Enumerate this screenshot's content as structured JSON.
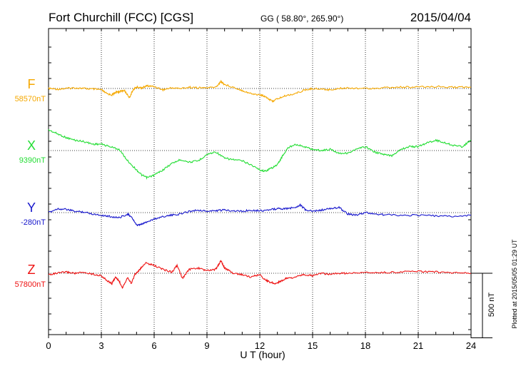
{
  "header": {
    "station": "Fort Churchill (FCC)  [CGS]",
    "coords": "GG ( 58.80°, 265.90°)",
    "date": "2015/04/04"
  },
  "plotted_note": "Plotted at 2015/05/05 01:29 UT",
  "scale_bar_label": "500 nT",
  "chart_data": {
    "type": "line",
    "xlabel": "U T (hour)",
    "xlim": [
      0,
      24
    ],
    "xticks": [
      0,
      3,
      6,
      9,
      12,
      15,
      18,
      21,
      24
    ],
    "grid": true,
    "scale_bar_nT": 500,
    "series": [
      {
        "name": "F",
        "baseline_label": "58570nT",
        "baseline": 58570,
        "color": "#f5a800",
        "x": [
          0,
          0.5,
          1,
          1.5,
          2,
          2.5,
          3,
          3.3,
          3.6,
          3.8,
          4,
          4.3,
          4.6,
          4.8,
          5,
          5.3,
          5.6,
          6,
          6.5,
          7,
          7.5,
          8,
          8.5,
          9,
          9.5,
          9.8,
          10,
          10.5,
          11,
          11.5,
          12,
          12.3,
          12.7,
          13,
          13.5,
          14,
          14.5,
          15,
          15.5,
          16,
          16.5,
          17,
          18,
          19,
          20,
          21,
          22,
          23,
          24
        ],
        "y": [
          58570,
          58565,
          58570,
          58575,
          58570,
          58565,
          58560,
          58530,
          58520,
          58540,
          58545,
          58555,
          58500,
          58560,
          58580,
          58575,
          58590,
          58585,
          58560,
          58575,
          58570,
          58580,
          58575,
          58575,
          58580,
          58625,
          58600,
          58580,
          58555,
          58530,
          58520,
          58510,
          58470,
          58490,
          58515,
          58530,
          58555,
          58570,
          58565,
          58560,
          58570,
          58575,
          58570,
          58575,
          58580,
          58580,
          58585,
          58580,
          58580
        ]
      },
      {
        "name": "X",
        "baseline_label": "9390nT",
        "baseline": 9390,
        "color": "#22dd33",
        "x": [
          0,
          0.5,
          1,
          1.5,
          2,
          2.5,
          3,
          3.5,
          4,
          4.5,
          5,
          5.3,
          5.6,
          6,
          6.5,
          7,
          7.5,
          8,
          8.5,
          9,
          9.5,
          10,
          10.5,
          11,
          11.5,
          12,
          12.3,
          12.6,
          13,
          13.3,
          13.6,
          14,
          14.5,
          15,
          15.5,
          16,
          16.5,
          17,
          17.5,
          18,
          18.5,
          19,
          19.5,
          20,
          20.5,
          21,
          21.5,
          22,
          22.5,
          23,
          23.5,
          24
        ],
        "y": [
          9550,
          9520,
          9490,
          9470,
          9460,
          9440,
          9440,
          9420,
          9400,
          9310,
          9240,
          9200,
          9180,
          9200,
          9240,
          9290,
          9320,
          9300,
          9310,
          9360,
          9380,
          9330,
          9320,
          9310,
          9280,
          9240,
          9230,
          9250,
          9280,
          9350,
          9410,
          9440,
          9420,
          9400,
          9390,
          9400,
          9370,
          9370,
          9400,
          9420,
          9380,
          9360,
          9350,
          9400,
          9420,
          9420,
          9450,
          9470,
          9450,
          9430,
          9420,
          9470
        ]
      },
      {
        "name": "Y",
        "baseline_label": "-280nT",
        "baseline": -280,
        "color": "#1515cc",
        "x": [
          0,
          0.5,
          1,
          1.5,
          2,
          2.5,
          3,
          3.5,
          4,
          4.5,
          4.8,
          5,
          5.3,
          5.6,
          6,
          6.5,
          7,
          7.5,
          8,
          8.5,
          9,
          9.5,
          10,
          10.5,
          11,
          11.5,
          12,
          12.5,
          13,
          13.5,
          14,
          14.3,
          14.6,
          15,
          15.5,
          16,
          16.5,
          17,
          17.5,
          18,
          18.5,
          19,
          20,
          21,
          22,
          23,
          24
        ],
        "y": [
          -280,
          -250,
          -255,
          -270,
          -275,
          -290,
          -300,
          -310,
          -320,
          -290,
          -330,
          -380,
          -370,
          -350,
          -330,
          -310,
          -300,
          -290,
          -270,
          -260,
          -270,
          -265,
          -260,
          -265,
          -270,
          -260,
          -265,
          -260,
          -250,
          -250,
          -240,
          -220,
          -260,
          -270,
          -260,
          -250,
          -240,
          -290,
          -300,
          -280,
          -290,
          -295,
          -300,
          -300,
          -305,
          -310,
          -300
        ]
      },
      {
        "name": "Z",
        "baseline_label": "57800nT",
        "baseline": 57800,
        "color": "#ee1111",
        "x": [
          0,
          0.5,
          1,
          1.5,
          2,
          2.5,
          3,
          3.3,
          3.6,
          3.8,
          4,
          4.2,
          4.5,
          4.7,
          4.9,
          5.2,
          5.5,
          6,
          6.5,
          7,
          7.3,
          7.6,
          8,
          8.5,
          9,
          9.5,
          9.8,
          10,
          10.5,
          11,
          11.5,
          12,
          12.3,
          12.6,
          12.9,
          13.2,
          13.5,
          14,
          14.5,
          15,
          15.5,
          16,
          16.5,
          17,
          18,
          19,
          20,
          21,
          22,
          23,
          24
        ],
        "y": [
          57790,
          57800,
          57810,
          57800,
          57805,
          57795,
          57780,
          57745,
          57720,
          57770,
          57740,
          57690,
          57770,
          57720,
          57790,
          57830,
          57880,
          57860,
          57830,
          57810,
          57860,
          57760,
          57830,
          57840,
          57820,
          57830,
          57900,
          57840,
          57800,
          57790,
          57770,
          57790,
          57750,
          57730,
          57720,
          57740,
          57760,
          57770,
          57790,
          57780,
          57800,
          57790,
          57800,
          57800,
          57805,
          57805,
          57810,
          57815,
          57810,
          57805,
          57800
        ]
      }
    ]
  }
}
